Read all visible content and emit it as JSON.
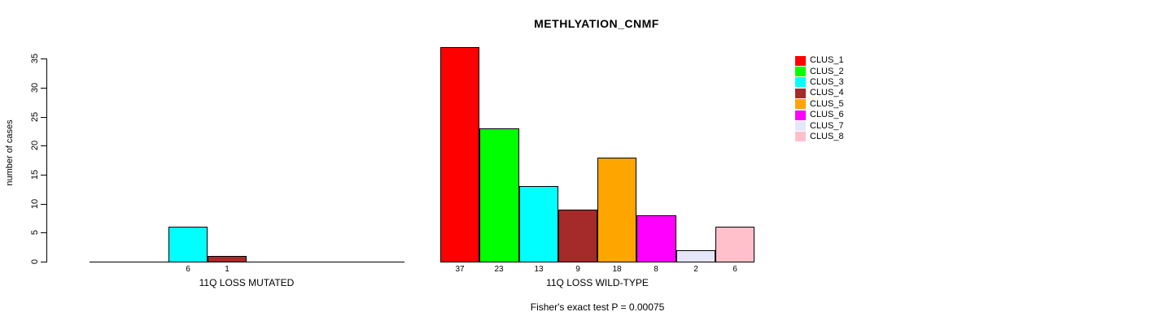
{
  "chart_data": {
    "type": "bar",
    "title": "METHLYATION_CNMF",
    "ylabel": "number of cases",
    "ylim": [
      0,
      35
    ],
    "yticks": [
      0,
      5,
      10,
      15,
      20,
      25,
      30,
      35
    ],
    "grid": false,
    "legend_position": "right",
    "clusters": [
      {
        "name": "CLUS_1",
        "color": "#FF0000"
      },
      {
        "name": "CLUS_2",
        "color": "#00FF00"
      },
      {
        "name": "CLUS_3",
        "color": "#00FFFF"
      },
      {
        "name": "CLUS_4",
        "color": "#A52A2A"
      },
      {
        "name": "CLUS_5",
        "color": "#FFA500"
      },
      {
        "name": "CLUS_6",
        "color": "#FF00FF"
      },
      {
        "name": "CLUS_7",
        "color": "#E6E6FA"
      },
      {
        "name": "CLUS_8",
        "color": "#FFC0CB"
      }
    ],
    "groups": [
      {
        "label": "11Q LOSS MUTATED",
        "values": [
          0,
          0,
          6,
          1,
          0,
          0,
          0,
          0
        ]
      },
      {
        "label": "11Q LOSS WILD-TYPE",
        "values": [
          37,
          23,
          13,
          9,
          18,
          8,
          2,
          6
        ]
      }
    ],
    "annotation": "Fisher's exact test P = 0.00075"
  }
}
